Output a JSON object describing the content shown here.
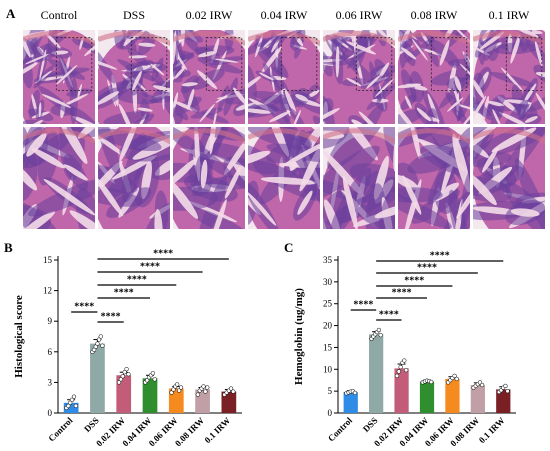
{
  "panel_a": {
    "letter": "A",
    "groups": [
      "Control",
      "DSS",
      "0.02 IRW",
      "0.04 IRW",
      "0.06 IRW",
      "0.08 IRW",
      "0.1 IRW"
    ],
    "colors": {
      "tissue": "#b64f9e",
      "lumen": "#f4dce8",
      "mucosa": "#6a3f9c",
      "background": "#f3e8ee"
    }
  },
  "chart_data": [
    {
      "panel": "B",
      "type": "bar",
      "ylabel": "Histological score",
      "ylim": [
        0,
        15
      ],
      "yticks": [
        0,
        3,
        6,
        9,
        12,
        15
      ],
      "categories": [
        "Control",
        "DSS",
        "0.02 IRW",
        "0.04 IRW",
        "0.06 IRW",
        "0.08 IRW",
        "0.1 IRW"
      ],
      "values": [
        1.0,
        6.8,
        3.7,
        3.4,
        2.4,
        2.3,
        2.1
      ],
      "errors": [
        0.3,
        0.4,
        0.3,
        0.3,
        0.2,
        0.2,
        0.2
      ],
      "colors": [
        "#2e8be6",
        "#8fa9a7",
        "#c25c79",
        "#2f8f2f",
        "#f58a1f",
        "#c0a0a6",
        "#7a1f24"
      ],
      "points": [
        [
          0.5,
          0.7,
          1.0,
          1.3,
          1.6,
          0.7
        ],
        [
          6.0,
          6.2,
          6.5,
          6.8,
          7.2,
          7.5,
          6.6
        ],
        [
          3.0,
          3.3,
          3.6,
          4.0,
          4.3,
          3.8
        ],
        [
          3.0,
          3.2,
          3.5,
          3.7,
          3.9,
          3.3
        ],
        [
          2.0,
          2.3,
          2.6,
          2.8,
          2.2,
          2.5
        ],
        [
          1.8,
          2.2,
          2.4,
          2.6,
          2.1,
          2.5
        ],
        [
          1.8,
          2.0,
          2.2,
          2.4,
          2.1
        ]
      ],
      "comparisons": [
        {
          "from": 0,
          "to": 1,
          "label": "****"
        },
        {
          "from": 1,
          "to": 2,
          "label": "****"
        },
        {
          "from": 1,
          "to": 3,
          "label": "****"
        },
        {
          "from": 1,
          "to": 4,
          "label": "****"
        },
        {
          "from": 1,
          "to": 5,
          "label": "****"
        },
        {
          "from": 1,
          "to": 6,
          "label": "****"
        }
      ]
    },
    {
      "panel": "C",
      "type": "bar",
      "ylabel": "Hemoglobin (ug/mg)",
      "ylim": [
        0,
        35
      ],
      "yticks": [
        0,
        5,
        10,
        15,
        20,
        25,
        30,
        35
      ],
      "categories": [
        "Control",
        "DSS",
        "0.02 IRW",
        "0.04 IRW",
        "0.06 IRW",
        "0.08 IRW",
        "0.1 IRW"
      ],
      "values": [
        4.8,
        18.0,
        10.2,
        7.2,
        7.8,
        6.4,
        5.4
      ],
      "errors": [
        0.3,
        0.6,
        1.0,
        0.3,
        0.5,
        0.5,
        0.6
      ],
      "colors": [
        "#2e8be6",
        "#8fa9a7",
        "#c25c79",
        "#2f8f2f",
        "#f58a1f",
        "#c0a0a6",
        "#7a1f24"
      ],
      "points": [
        [
          4.5,
          4.7,
          4.9,
          5.0,
          4.6
        ],
        [
          17.0,
          17.5,
          18.0,
          18.5,
          19.0,
          17.8
        ],
        [
          8.5,
          9.5,
          10.5,
          11.5,
          12.0,
          9.8
        ],
        [
          7.0,
          7.2,
          7.4,
          7.3,
          7.1
        ],
        [
          7.0,
          7.5,
          8.0,
          8.5,
          7.8
        ],
        [
          5.8,
          6.2,
          6.6,
          7.0,
          6.4
        ],
        [
          4.8,
          5.2,
          5.8,
          6.2,
          5.0
        ]
      ],
      "comparisons": [
        {
          "from": 0,
          "to": 1,
          "label": "****"
        },
        {
          "from": 1,
          "to": 2,
          "label": "****"
        },
        {
          "from": 1,
          "to": 3,
          "label": "****"
        },
        {
          "from": 1,
          "to": 4,
          "label": "****"
        },
        {
          "from": 1,
          "to": 5,
          "label": "****"
        },
        {
          "from": 1,
          "to": 6,
          "label": "****"
        }
      ]
    }
  ]
}
